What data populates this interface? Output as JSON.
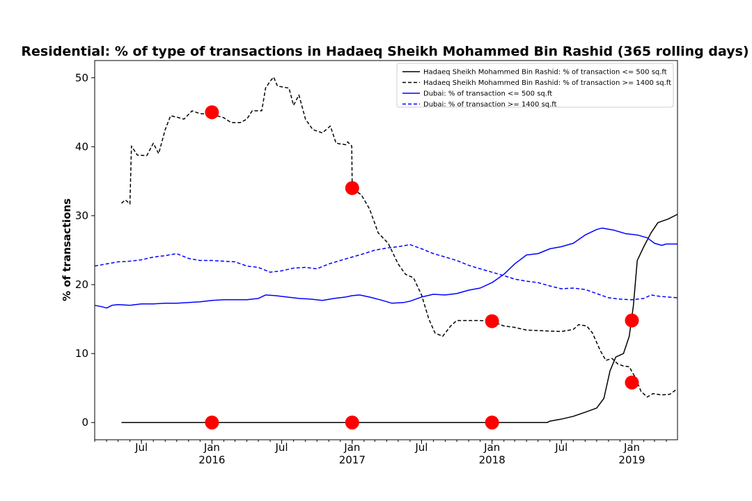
{
  "chart_data": {
    "type": "line",
    "title": "Residential: % of type of transactions in Hadaeq Sheikh Mohammed Bin Rashid (365 rolling days)",
    "xlabel": "",
    "ylabel": "% of transactions",
    "xlim": [
      "2015-03-01",
      "2019-04-30"
    ],
    "ylim": [
      -2.5,
      52.5
    ],
    "grid": false,
    "legend_position": "top-right",
    "y_ticks": [
      0,
      10,
      20,
      30,
      40,
      50
    ],
    "x_ticks": [
      {
        "date": "2015-07-01",
        "label": "Jul",
        "sublabel": ""
      },
      {
        "date": "2016-01-01",
        "label": "Jan",
        "sublabel": "2016"
      },
      {
        "date": "2016-07-01",
        "label": "Jul",
        "sublabel": ""
      },
      {
        "date": "2017-01-01",
        "label": "Jan",
        "sublabel": "2017"
      },
      {
        "date": "2017-07-01",
        "label": "Jul",
        "sublabel": ""
      },
      {
        "date": "2018-01-01",
        "label": "Jan",
        "sublabel": "2018"
      },
      {
        "date": "2018-07-01",
        "label": "Jul",
        "sublabel": ""
      },
      {
        "date": "2019-01-01",
        "label": "Jan",
        "sublabel": "2019"
      }
    ],
    "series": [
      {
        "name": "Hadaeq Sheikh Mohammed Bin Rashid: % of transaction <= 500 sq.ft",
        "color": "#000000",
        "dash": "solid",
        "points": [
          [
            "2015-05-10",
            0
          ],
          [
            "2016-06-01",
            0
          ],
          [
            "2017-06-01",
            0
          ],
          [
            "2018-05-25",
            0
          ],
          [
            "2018-06-01",
            0.2
          ],
          [
            "2018-07-01",
            0.5
          ],
          [
            "2018-08-01",
            0.9
          ],
          [
            "2018-09-01",
            1.5
          ],
          [
            "2018-10-01",
            2.1
          ],
          [
            "2018-10-20",
            3.5
          ],
          [
            "2018-11-05",
            7.5
          ],
          [
            "2018-11-20",
            9.5
          ],
          [
            "2018-12-10",
            10.0
          ],
          [
            "2018-12-25",
            12.5
          ],
          [
            "2019-01-05",
            17.0
          ],
          [
            "2019-01-15",
            23.5
          ],
          [
            "2019-02-01",
            25.5
          ],
          [
            "2019-02-20",
            27.5
          ],
          [
            "2019-03-10",
            29.0
          ],
          [
            "2019-04-05",
            29.5
          ],
          [
            "2019-04-30",
            30.2
          ]
        ]
      },
      {
        "name": "Hadaeq Sheikh Mohammed Bin Rashid: % of transaction >= 1400 sq.ft",
        "color": "#000000",
        "dash": "dashed",
        "points": [
          [
            "2015-05-10",
            31.8
          ],
          [
            "2015-05-20",
            32.3
          ],
          [
            "2015-06-01",
            31.7
          ],
          [
            "2015-06-05",
            40.1
          ],
          [
            "2015-06-20",
            38.8
          ],
          [
            "2015-07-15",
            38.7
          ],
          [
            "2015-08-01",
            40.5
          ],
          [
            "2015-08-15",
            39.0
          ],
          [
            "2015-09-01",
            42.5
          ],
          [
            "2015-09-15",
            44.5
          ],
          [
            "2015-10-01",
            44.3
          ],
          [
            "2015-10-20",
            44.0
          ],
          [
            "2015-11-10",
            45.2
          ],
          [
            "2015-12-01",
            44.8
          ],
          [
            "2016-01-01",
            44.7
          ],
          [
            "2016-02-01",
            44.2
          ],
          [
            "2016-02-20",
            43.5
          ],
          [
            "2016-03-15",
            43.5
          ],
          [
            "2016-04-01",
            44.0
          ],
          [
            "2016-04-15",
            45.2
          ],
          [
            "2016-05-10",
            45.2
          ],
          [
            "2016-05-20",
            48.5
          ],
          [
            "2016-06-01",
            49.5
          ],
          [
            "2016-06-10",
            50.1
          ],
          [
            "2016-06-20",
            48.8
          ],
          [
            "2016-07-20",
            48.5
          ],
          [
            "2016-08-01",
            46.0
          ],
          [
            "2016-08-15",
            47.5
          ],
          [
            "2016-09-01",
            44.0
          ],
          [
            "2016-09-20",
            42.5
          ],
          [
            "2016-10-15",
            42.0
          ],
          [
            "2016-11-05",
            43.0
          ],
          [
            "2016-11-20",
            40.5
          ],
          [
            "2016-12-15",
            40.3
          ],
          [
            "2016-12-20",
            40.7
          ],
          [
            "2016-12-31",
            40.1
          ],
          [
            "2017-01-01",
            34.0
          ],
          [
            "2017-01-25",
            33.0
          ],
          [
            "2017-02-15",
            31.0
          ],
          [
            "2017-03-10",
            27.5
          ],
          [
            "2017-04-05",
            26.0
          ],
          [
            "2017-05-01",
            23.0
          ],
          [
            "2017-05-20",
            21.5
          ],
          [
            "2017-06-10",
            21.0
          ],
          [
            "2017-07-01",
            18.5
          ],
          [
            "2017-07-20",
            15.0
          ],
          [
            "2017-08-05",
            13.0
          ],
          [
            "2017-08-25",
            12.5
          ],
          [
            "2017-09-15",
            14.0
          ],
          [
            "2017-10-01",
            14.8
          ],
          [
            "2017-12-01",
            14.8
          ],
          [
            "2018-01-01",
            14.7
          ],
          [
            "2018-02-01",
            14.0
          ],
          [
            "2018-03-01",
            13.8
          ],
          [
            "2018-04-01",
            13.4
          ],
          [
            "2018-05-15",
            13.3
          ],
          [
            "2018-07-01",
            13.2
          ],
          [
            "2018-08-01",
            13.5
          ],
          [
            "2018-08-15",
            14.2
          ],
          [
            "2018-09-05",
            14.0
          ],
          [
            "2018-09-20",
            13.0
          ],
          [
            "2018-10-10",
            10.5
          ],
          [
            "2018-10-25",
            9.0
          ],
          [
            "2018-11-10",
            9.3
          ],
          [
            "2018-11-25",
            8.5
          ],
          [
            "2018-12-10",
            8.2
          ],
          [
            "2018-12-25",
            8.1
          ],
          [
            "2019-01-10",
            6.5
          ],
          [
            "2019-01-25",
            4.5
          ],
          [
            "2019-02-10",
            3.7
          ],
          [
            "2019-02-25",
            4.2
          ],
          [
            "2019-03-20",
            4.0
          ],
          [
            "2019-04-10",
            4.1
          ],
          [
            "2019-04-30",
            4.9
          ]
        ]
      },
      {
        "name": "Dubai: % of transaction <= 500 sq.ft",
        "color": "#0000ff",
        "dash": "solid",
        "points": [
          [
            "2015-03-01",
            17.0
          ],
          [
            "2015-03-20",
            16.8
          ],
          [
            "2015-04-01",
            16.6
          ],
          [
            "2015-04-15",
            17.0
          ],
          [
            "2015-05-01",
            17.1
          ],
          [
            "2015-06-01",
            17.0
          ],
          [
            "2015-07-01",
            17.2
          ],
          [
            "2015-08-01",
            17.2
          ],
          [
            "2015-09-01",
            17.3
          ],
          [
            "2015-10-01",
            17.3
          ],
          [
            "2015-11-01",
            17.4
          ],
          [
            "2015-12-01",
            17.5
          ],
          [
            "2016-01-01",
            17.7
          ],
          [
            "2016-02-01",
            17.8
          ],
          [
            "2016-03-01",
            17.8
          ],
          [
            "2016-04-01",
            17.8
          ],
          [
            "2016-05-01",
            18.0
          ],
          [
            "2016-05-20",
            18.5
          ],
          [
            "2016-06-15",
            18.4
          ],
          [
            "2016-07-15",
            18.2
          ],
          [
            "2016-08-15",
            18.0
          ],
          [
            "2016-09-15",
            17.9
          ],
          [
            "2016-10-15",
            17.7
          ],
          [
            "2016-11-15",
            18.0
          ],
          [
            "2016-12-15",
            18.2
          ],
          [
            "2017-01-01",
            18.4
          ],
          [
            "2017-01-20",
            18.5
          ],
          [
            "2017-02-15",
            18.2
          ],
          [
            "2017-03-15",
            17.8
          ],
          [
            "2017-04-15",
            17.3
          ],
          [
            "2017-05-15",
            17.4
          ],
          [
            "2017-06-01",
            17.6
          ],
          [
            "2017-07-01",
            18.2
          ],
          [
            "2017-08-01",
            18.6
          ],
          [
            "2017-09-01",
            18.5
          ],
          [
            "2017-10-01",
            18.7
          ],
          [
            "2017-11-01",
            19.2
          ],
          [
            "2017-12-01",
            19.5
          ],
          [
            "2018-01-01",
            20.3
          ],
          [
            "2018-02-01",
            21.5
          ],
          [
            "2018-03-01",
            23.0
          ],
          [
            "2018-04-01",
            24.3
          ],
          [
            "2018-05-01",
            24.5
          ],
          [
            "2018-06-01",
            25.2
          ],
          [
            "2018-07-01",
            25.5
          ],
          [
            "2018-08-01",
            26.0
          ],
          [
            "2018-09-01",
            27.2
          ],
          [
            "2018-10-01",
            28.0
          ],
          [
            "2018-10-15",
            28.2
          ],
          [
            "2018-11-15",
            27.9
          ],
          [
            "2018-12-15",
            27.4
          ],
          [
            "2019-01-15",
            27.2
          ],
          [
            "2019-02-10",
            26.8
          ],
          [
            "2019-03-01",
            26.0
          ],
          [
            "2019-03-20",
            25.7
          ],
          [
            "2019-04-01",
            25.9
          ],
          [
            "2019-04-30",
            25.9
          ]
        ]
      },
      {
        "name": "Dubai: % of transaction >= 1400 sq.ft",
        "color": "#0000ff",
        "dash": "dashed",
        "points": [
          [
            "2015-03-01",
            22.7
          ],
          [
            "2015-04-01",
            23.0
          ],
          [
            "2015-05-01",
            23.3
          ],
          [
            "2015-06-01",
            23.4
          ],
          [
            "2015-07-01",
            23.6
          ],
          [
            "2015-08-01",
            24.0
          ],
          [
            "2015-09-01",
            24.2
          ],
          [
            "2015-10-01",
            24.5
          ],
          [
            "2015-11-01",
            23.8
          ],
          [
            "2015-12-01",
            23.5
          ],
          [
            "2016-01-01",
            23.5
          ],
          [
            "2016-02-01",
            23.4
          ],
          [
            "2016-03-01",
            23.3
          ],
          [
            "2016-04-01",
            22.7
          ],
          [
            "2016-05-01",
            22.5
          ],
          [
            "2016-06-01",
            21.8
          ],
          [
            "2016-07-01",
            22.0
          ],
          [
            "2016-08-01",
            22.4
          ],
          [
            "2016-09-01",
            22.5
          ],
          [
            "2016-10-01",
            22.3
          ],
          [
            "2016-11-01",
            23.0
          ],
          [
            "2016-12-01",
            23.5
          ],
          [
            "2017-01-01",
            24.0
          ],
          [
            "2017-02-01",
            24.5
          ],
          [
            "2017-03-01",
            25.0
          ],
          [
            "2017-04-01",
            25.3
          ],
          [
            "2017-05-01",
            25.5
          ],
          [
            "2017-06-01",
            25.8
          ],
          [
            "2017-07-01",
            25.2
          ],
          [
            "2017-08-01",
            24.5
          ],
          [
            "2017-09-01",
            24.0
          ],
          [
            "2017-10-01",
            23.5
          ],
          [
            "2017-11-01",
            22.8
          ],
          [
            "2017-12-01",
            22.3
          ],
          [
            "2018-01-01",
            21.8
          ],
          [
            "2018-02-01",
            21.3
          ],
          [
            "2018-03-01",
            20.8
          ],
          [
            "2018-04-01",
            20.5
          ],
          [
            "2018-05-01",
            20.3
          ],
          [
            "2018-06-01",
            19.8
          ],
          [
            "2018-07-01",
            19.4
          ],
          [
            "2018-08-01",
            19.5
          ],
          [
            "2018-09-01",
            19.3
          ],
          [
            "2018-10-01",
            18.7
          ],
          [
            "2018-11-01",
            18.1
          ],
          [
            "2018-12-01",
            17.9
          ],
          [
            "2019-01-01",
            17.8
          ],
          [
            "2019-02-01",
            18.0
          ],
          [
            "2019-02-20",
            18.5
          ],
          [
            "2019-03-15",
            18.3
          ],
          [
            "2019-04-30",
            18.1
          ]
        ]
      }
    ],
    "markers": {
      "color": "#ff0000",
      "points": [
        [
          "2016-01-01",
          45.0
        ],
        [
          "2016-01-01",
          0.0
        ],
        [
          "2017-01-01",
          34.0
        ],
        [
          "2017-01-01",
          0.0
        ],
        [
          "2018-01-01",
          14.7
        ],
        [
          "2018-01-01",
          0.0
        ],
        [
          "2019-01-01",
          14.8
        ],
        [
          "2019-01-01",
          5.8
        ]
      ]
    }
  }
}
